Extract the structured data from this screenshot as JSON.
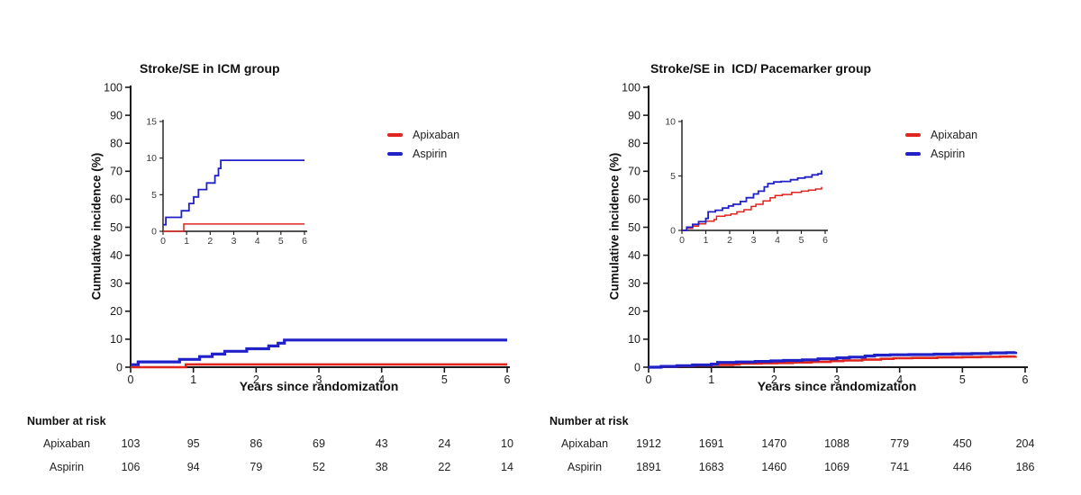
{
  "figure": {
    "background": "#ffffff"
  },
  "colors": {
    "apixaban": "#e0241e",
    "aspirin": "#2121c8",
    "axis": "#1a1a1a"
  },
  "chart_data": [
    {
      "type": "line",
      "step": true,
      "title": "Stroke/SE in ICM group",
      "xlabel": "Years since randomization",
      "ylabel": "Cumulative incidence (%)",
      "xlim": [
        0,
        6
      ],
      "ylim": [
        0,
        100
      ],
      "xticks": [
        0,
        1,
        2,
        3,
        4,
        5,
        6
      ],
      "yticks": [
        0,
        10,
        20,
        30,
        40,
        50,
        60,
        70,
        80,
        90,
        100
      ],
      "grid": false,
      "legend_position": "upper right inside",
      "legend": [
        {
          "label": "Apixaban",
          "color": "#e0241e"
        },
        {
          "label": "Aspirin",
          "color": "#2121c8"
        }
      ],
      "series": [
        {
          "name": "Apixaban",
          "color": "#e0241e",
          "points": [
            [
              0,
              0
            ],
            [
              0.88,
              1.0
            ],
            [
              6,
              1.0
            ]
          ]
        },
        {
          "name": "Aspirin",
          "color": "#2121c8",
          "points": [
            [
              0,
              0.9
            ],
            [
              0.12,
              1.9
            ],
            [
              0.78,
              2.8
            ],
            [
              1.1,
              3.8
            ],
            [
              1.3,
              4.7
            ],
            [
              1.5,
              5.7
            ],
            [
              1.85,
              6.6
            ],
            [
              2.2,
              7.6
            ],
            [
              2.35,
              8.6
            ],
            [
              2.45,
              9.7
            ],
            [
              6,
              9.7
            ]
          ]
        }
      ],
      "inset": {
        "xlim": [
          0,
          6
        ],
        "ylim": [
          0,
          15
        ],
        "xticks": [
          0,
          1,
          2,
          3,
          4,
          5,
          6
        ],
        "yticks": [
          0,
          5,
          10,
          15
        ]
      },
      "number_at_risk": {
        "header": "Number at risk",
        "rows": [
          {
            "label": "Apixaban",
            "values": [
              103,
              95,
              86,
              69,
              43,
              24,
              10
            ]
          },
          {
            "label": "Aspirin",
            "values": [
              106,
              94,
              79,
              52,
              38,
              22,
              14
            ]
          }
        ]
      }
    },
    {
      "type": "line",
      "step": true,
      "title": "Stroke/SE in  ICD/ Pacemarker group",
      "xlabel": "Years since randomization",
      "ylabel": "Cumulative incidence (%)",
      "xlim": [
        0,
        6
      ],
      "ylim": [
        0,
        100
      ],
      "xticks": [
        0,
        1,
        2,
        3,
        4,
        5,
        6
      ],
      "yticks": [
        0,
        10,
        20,
        30,
        40,
        50,
        60,
        70,
        80,
        90,
        100
      ],
      "grid": false,
      "legend_position": "upper right inside",
      "legend": [
        {
          "label": "Apixaban",
          "color": "#e0241e"
        },
        {
          "label": "Aspirin",
          "color": "#2121c8"
        }
      ],
      "series": [
        {
          "name": "Apixaban",
          "color": "#e0241e",
          "points": [
            [
              0,
              0
            ],
            [
              0.2,
              0.2
            ],
            [
              0.45,
              0.4
            ],
            [
              0.7,
              0.6
            ],
            [
              1.0,
              0.85
            ],
            [
              1.35,
              1.0
            ],
            [
              1.45,
              1.3
            ],
            [
              1.8,
              1.4
            ],
            [
              2.05,
              1.5
            ],
            [
              2.3,
              1.7
            ],
            [
              2.6,
              1.9
            ],
            [
              2.9,
              2.2
            ],
            [
              3.1,
              2.4
            ],
            [
              3.4,
              2.7
            ],
            [
              3.7,
              3.0
            ],
            [
              3.9,
              3.2
            ],
            [
              4.2,
              3.3
            ],
            [
              4.6,
              3.5
            ],
            [
              5.0,
              3.6
            ],
            [
              5.3,
              3.7
            ],
            [
              5.6,
              3.8
            ],
            [
              5.85,
              4.0
            ]
          ]
        },
        {
          "name": "Aspirin",
          "color": "#2121c8",
          "points": [
            [
              0,
              0
            ],
            [
              0.2,
              0.3
            ],
            [
              0.45,
              0.55
            ],
            [
              0.7,
              0.8
            ],
            [
              1.0,
              1.1
            ],
            [
              1.1,
              1.7
            ],
            [
              1.4,
              1.85
            ],
            [
              1.7,
              2.05
            ],
            [
              1.95,
              2.25
            ],
            [
              2.15,
              2.4
            ],
            [
              2.45,
              2.65
            ],
            [
              2.7,
              3.0
            ],
            [
              3.0,
              3.35
            ],
            [
              3.2,
              3.6
            ],
            [
              3.45,
              4.0
            ],
            [
              3.6,
              4.3
            ],
            [
              3.85,
              4.45
            ],
            [
              4.15,
              4.5
            ],
            [
              4.55,
              4.65
            ],
            [
              4.85,
              4.8
            ],
            [
              5.15,
              4.9
            ],
            [
              5.45,
              5.1
            ],
            [
              5.7,
              5.2
            ],
            [
              5.85,
              5.5
            ]
          ]
        }
      ],
      "inset": {
        "xlim": [
          0,
          6
        ],
        "ylim": [
          0,
          10
        ],
        "xticks": [
          0,
          1,
          2,
          3,
          4,
          5,
          6
        ],
        "yticks": [
          0,
          5,
          10
        ]
      },
      "number_at_risk": {
        "header": "Number at risk",
        "rows": [
          {
            "label": "Apixaban",
            "values": [
              1912,
              1691,
              1470,
              1088,
              779,
              450,
              204
            ]
          },
          {
            "label": "Aspirin",
            "values": [
              1891,
              1683,
              1460,
              1069,
              741,
              446,
              186
            ]
          }
        ]
      }
    }
  ]
}
